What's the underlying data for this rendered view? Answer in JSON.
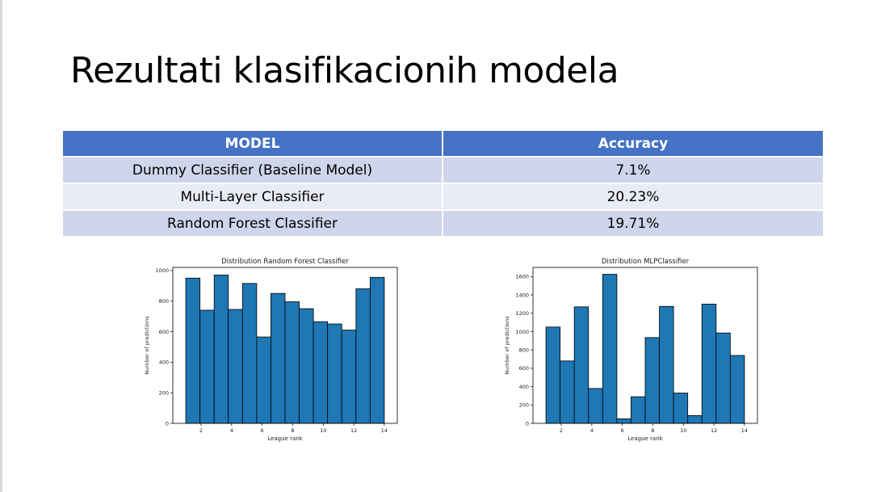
{
  "title": "Rezultati klasifikacionih modela",
  "table": {
    "headers": [
      "MODEL",
      "Accuracy"
    ],
    "rows": [
      {
        "model": "Dummy Classifier (Baseline Model)",
        "accuracy": "7.1%"
      },
      {
        "model": "Multi-Layer Classifier",
        "accuracy": "20.23%"
      },
      {
        "model": "Random Forest Classifier",
        "accuracy": "19.71%"
      }
    ]
  },
  "colors": {
    "header": "#4472c4",
    "row_odd": "#cfd5ea",
    "row_even": "#e9ebf5",
    "bar": "#1f77b4"
  },
  "chart_data": [
    {
      "type": "bar",
      "title": "Distribution Random Forest Classifier",
      "xlabel": "League rank",
      "ylabel": "Number of predictions",
      "xlim": [
        0.15,
        14.85
      ],
      "ylim": [
        0,
        1020
      ],
      "xticks": [
        2,
        4,
        6,
        8,
        10,
        12,
        14
      ],
      "yticks": [
        0,
        200,
        400,
        600,
        800,
        1000
      ],
      "bin_edges": [
        1,
        1.929,
        2.857,
        3.786,
        4.714,
        5.643,
        6.571,
        7.5,
        8.429,
        9.357,
        10.286,
        11.214,
        12.143,
        13.071,
        14
      ],
      "values": [
        950,
        740,
        970,
        745,
        915,
        565,
        850,
        795,
        750,
        665,
        650,
        610,
        880,
        955
      ]
    },
    {
      "type": "bar",
      "title": "Distribution MLPClassifier",
      "xlabel": "League rank",
      "ylabel": "Number of predictions",
      "xlim": [
        0.15,
        14.85
      ],
      "ylim": [
        0,
        1700
      ],
      "xticks": [
        2,
        4,
        6,
        8,
        10,
        12,
        14
      ],
      "yticks": [
        0,
        200,
        400,
        600,
        800,
        1000,
        1200,
        1400,
        1600
      ],
      "bin_edges": [
        1,
        1.929,
        2.857,
        3.786,
        4.714,
        5.643,
        6.571,
        7.5,
        8.429,
        9.357,
        10.286,
        11.214,
        12.143,
        13.071,
        14
      ],
      "values": [
        1050,
        680,
        1270,
        380,
        1625,
        50,
        290,
        935,
        1275,
        330,
        85,
        1300,
        985,
        740
      ]
    }
  ]
}
